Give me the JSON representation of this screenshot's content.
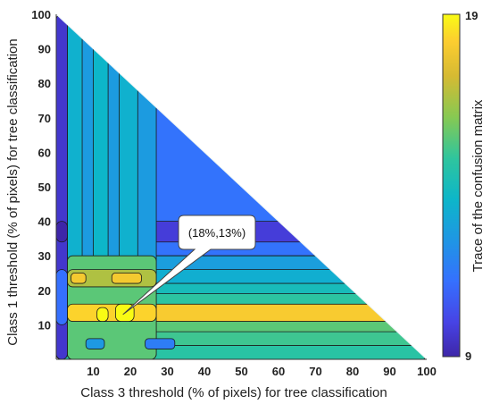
{
  "chart_data": {
    "type": "heatmap",
    "xlabel": "Class 3 threshold (% of pixels) for tree classification",
    "ylabel": "Class 1 threshold (% of pixels) for tree classification",
    "xlim": [
      0,
      100
    ],
    "ylim": [
      0,
      100
    ],
    "x_ticks": [
      "10",
      "20",
      "30",
      "40",
      "50",
      "60",
      "70",
      "80",
      "90",
      "100"
    ],
    "y_ticks": [
      "10",
      "20",
      "30",
      "40",
      "50",
      "60",
      "70",
      "80",
      "90",
      "100"
    ],
    "domain": "lower-left triangle (x + y <= 100)",
    "colorbar": {
      "label": "Trace of the confusion matrix",
      "min": 9,
      "max": 19,
      "min_label": "9",
      "max_label": "19",
      "colormap": "parula"
    },
    "annotation": {
      "text": "(18%,13%)",
      "x": 18,
      "y": 13
    },
    "regions": [
      {
        "x": [
          0,
          100
        ],
        "y": [
          0,
          100
        ],
        "value": 11.3
      },
      {
        "x": [
          0,
          100
        ],
        "y": [
          0,
          30
        ],
        "value": 13.6
      },
      {
        "x": [
          0,
          100
        ],
        "y": [
          0,
          4
        ],
        "value": 14.6
      },
      {
        "x": [
          0,
          100
        ],
        "y": [
          4,
          8
        ],
        "value": 15.0
      },
      {
        "x": [
          0,
          100
        ],
        "y": [
          8,
          11
        ],
        "value": 15.4
      },
      {
        "x": [
          0,
          100
        ],
        "y": [
          11,
          16
        ],
        "value": 18.1
      },
      {
        "x": [
          0,
          100
        ],
        "y": [
          16,
          19
        ],
        "value": 14.7
      },
      {
        "x": [
          0,
          100
        ],
        "y": [
          19,
          22
        ],
        "value": 14.0
      },
      {
        "x": [
          0,
          100
        ],
        "y": [
          22,
          26
        ],
        "value": 13.3
      },
      {
        "x": [
          0,
          100
        ],
        "y": [
          26,
          30
        ],
        "value": 12.7
      },
      {
        "x": [
          13,
          100
        ],
        "y": [
          34,
          40
        ],
        "value": 9.8
      },
      {
        "x": [
          3,
          27
        ],
        "y": [
          0,
          100
        ],
        "value": 12.6
      },
      {
        "x": [
          3,
          7
        ],
        "y": [
          0,
          100
        ],
        "value": 13.4
      },
      {
        "x": [
          10,
          14
        ],
        "y": [
          0,
          100
        ],
        "value": 13.6
      },
      {
        "x": [
          17,
          22
        ],
        "y": [
          0,
          100
        ],
        "value": 13.4
      },
      {
        "x": [
          3,
          27
        ],
        "y": [
          0,
          30
        ],
        "value": 15.4
      },
      {
        "x": [
          3,
          27
        ],
        "y": [
          11,
          16
        ],
        "value": 18.3
      },
      {
        "x": [
          3,
          27
        ],
        "y": [
          21,
          26
        ],
        "value": 16.6
      },
      {
        "x": [
          4,
          8
        ],
        "y": [
          22,
          25
        ],
        "value": 18.0
      },
      {
        "x": [
          15,
          23
        ],
        "y": [
          22,
          25
        ],
        "value": 18.0
      },
      {
        "x": [
          11,
          14
        ],
        "y": [
          11,
          15
        ],
        "value": 19.0
      },
      {
        "x": [
          16,
          21
        ],
        "y": [
          11,
          16
        ],
        "value": 19.0
      },
      {
        "x": [
          24,
          32
        ],
        "y": [
          3,
          6
        ],
        "value": 11.6
      },
      {
        "x": [
          8,
          13
        ],
        "y": [
          3,
          6
        ],
        "value": 12.5
      },
      {
        "x": [
          0,
          3
        ],
        "y": [
          0,
          100
        ],
        "value": 9.6
      },
      {
        "x": [
          0,
          3
        ],
        "y": [
          34,
          40
        ],
        "value": 9.0
      },
      {
        "x": [
          0,
          3
        ],
        "y": [
          10,
          26
        ],
        "value": 11.2
      }
    ]
  }
}
